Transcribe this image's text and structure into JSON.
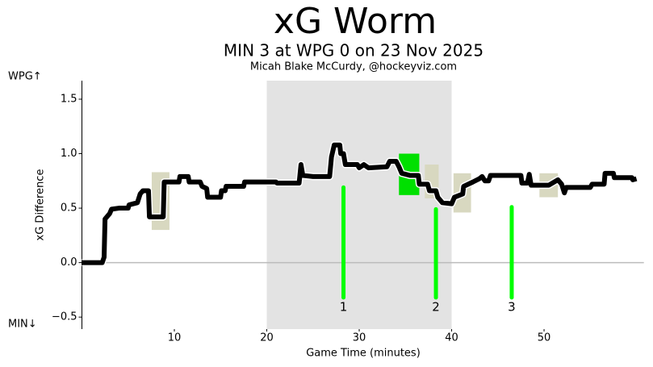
{
  "chart_data": {
    "type": "line",
    "title": "xG Worm",
    "subtitle": "MIN 3 at WPG 0 on 23 Nov 2025",
    "byline": "Micah Blake McCurdy, @hockeyviz.com",
    "x_label": "Game Time (minutes)",
    "y_label": "xG Difference",
    "top_team_label": "WPG↑",
    "bottom_team_label": "MIN↓",
    "xlim": [
      0,
      60.8
    ],
    "ylim": [
      -0.61,
      1.67
    ],
    "xticks": [
      10,
      20,
      30,
      40,
      50
    ],
    "yticks": [
      {
        "value": -0.5,
        "label": "−0.5"
      },
      {
        "value": 0,
        "label": "0.0"
      },
      0.5,
      {
        "value": 1,
        "label": "1.0"
      },
      1.5
    ],
    "period_shading": {
      "x": [
        20,
        40
      ],
      "color": "#e3e3e3"
    },
    "boxes": [
      {
        "x": [
          7.55,
          9.47
        ],
        "y": [
          0.3,
          0.83
        ],
        "color": "#d8d8c0"
      },
      {
        "x": [
          34.3,
          36.5
        ],
        "y": [
          0.62,
          1.0
        ],
        "color": "#00e000"
      },
      {
        "x": [
          37.1,
          38.6
        ],
        "y": [
          0.59,
          0.9
        ],
        "color": "#d8d8c0"
      },
      {
        "x": [
          40.2,
          42.1
        ],
        "y": [
          0.46,
          0.82
        ],
        "color": "#d8d8c0"
      },
      {
        "x": [
          49.5,
          51.5
        ],
        "y": [
          0.6,
          0.82
        ],
        "color": "#d8d8c0"
      }
    ],
    "goals": [
      {
        "x": 28.3,
        "y": [
          -0.32,
          0.69
        ],
        "label": "1"
      },
      {
        "x": 38.3,
        "y": [
          -0.32,
          0.49
        ],
        "label": "2"
      },
      {
        "x": 46.5,
        "y": [
          -0.32,
          0.51
        ],
        "label": "3"
      }
    ],
    "goal_color": "#00ff00",
    "series": [
      {
        "color": "#000000",
        "x": [
          0,
          2.2,
          2.4,
          2.5,
          3,
          3.2,
          4,
          5,
          5.1,
          6,
          6.3,
          6.6,
          7.2,
          7.3,
          8.8,
          8.9,
          10.5,
          10.6,
          11.5,
          11.6,
          12.8,
          13,
          13.5,
          13.6,
          15,
          15.1,
          15.5,
          15.6,
          17.5,
          17.6,
          19.5,
          21,
          21.1,
          23.5,
          23.7,
          23.9,
          25,
          26.8,
          27,
          27.3,
          27.9,
          28,
          28.3,
          28.5,
          29.8,
          30,
          30.5,
          31,
          33,
          33.3,
          34,
          34.3,
          34.6,
          35.5,
          36.4,
          36.5,
          37.4,
          37.6,
          38.3,
          38.5,
          39,
          40,
          40.3,
          41.2,
          41.3,
          42.3,
          43,
          43.3,
          43.6,
          44,
          44.2,
          47.5,
          47.6,
          48.2,
          48.4,
          48.6,
          50.5,
          51.5,
          51.9,
          52.2,
          52.4,
          55,
          55.2,
          56.5,
          56.6,
          57.5,
          57.6,
          59.5,
          59.6,
          60
        ],
        "values": [
          0,
          0,
          0.05,
          0.4,
          0.45,
          0.49,
          0.5,
          0.5,
          0.53,
          0.55,
          0.63,
          0.66,
          0.66,
          0.42,
          0.42,
          0.74,
          0.74,
          0.79,
          0.79,
          0.74,
          0.74,
          0.7,
          0.68,
          0.6,
          0.6,
          0.66,
          0.66,
          0.7,
          0.7,
          0.74,
          0.74,
          0.74,
          0.73,
          0.73,
          0.9,
          0.8,
          0.79,
          0.79,
          0.97,
          1.08,
          1.08,
          1.0,
          1.0,
          0.9,
          0.9,
          0.87,
          0.9,
          0.87,
          0.88,
          0.93,
          0.93,
          0.88,
          0.82,
          0.8,
          0.8,
          0.72,
          0.72,
          0.66,
          0.66,
          0.6,
          0.55,
          0.54,
          0.6,
          0.63,
          0.7,
          0.74,
          0.77,
          0.79,
          0.75,
          0.75,
          0.8,
          0.8,
          0.73,
          0.73,
          0.81,
          0.71,
          0.71,
          0.76,
          0.72,
          0.64,
          0.69,
          0.69,
          0.72,
          0.72,
          0.82,
          0.82,
          0.78,
          0.78,
          0.76,
          0.77
        ]
      }
    ],
    "zero_line": true
  }
}
